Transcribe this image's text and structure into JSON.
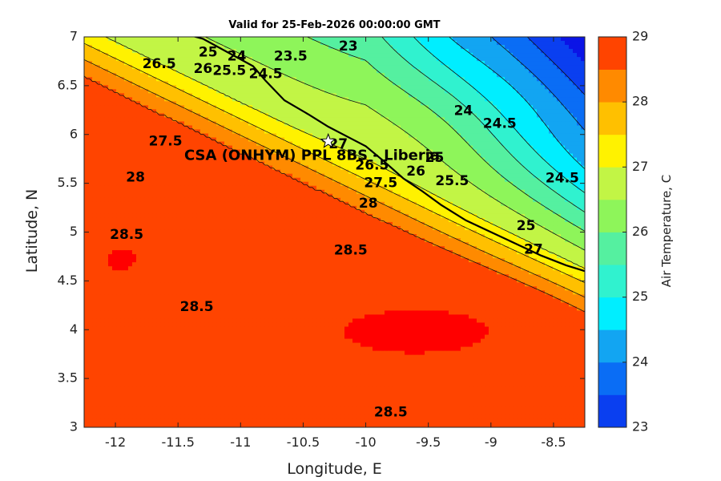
{
  "chart_data": {
    "type": "heatmap",
    "subtype": "filled-contour",
    "title": "Valid for 25-Feb-2026 00:00:00 GMT",
    "xlabel": "Longitude, E",
    "ylabel": "Latitude, N",
    "xlim": [
      -12.25,
      -8.25
    ],
    "ylim": [
      3,
      7
    ],
    "xticks": [
      -12,
      -11.5,
      -11,
      -10.5,
      -10,
      -9.5,
      -9,
      -8.5
    ],
    "yticks": [
      3,
      3.5,
      4,
      4.5,
      5,
      5.5,
      6,
      6.5,
      7
    ],
    "colorbar": {
      "label": "Air Temperature, C",
      "min": 23,
      "max": 29,
      "ticks": [
        23,
        24,
        25,
        26,
        27,
        28,
        29
      ],
      "levels": [
        23,
        23.5,
        24,
        24.5,
        25,
        25.5,
        26,
        26.5,
        27,
        27.5,
        28,
        28.5,
        29
      ],
      "colors": [
        "#0b14e6",
        "#0a3ff0",
        "#0a6df5",
        "#12a5f2",
        "#00eeff",
        "#30f2cf",
        "#55f0a0",
        "#8ef55a",
        "#c2f545",
        "#fff200",
        "#ffc000",
        "#ff8a00",
        "#ff4400",
        "#ff0000"
      ]
    },
    "contour_labels": [
      {
        "text": "23",
        "lon": -10.14,
        "lat": 6.9
      },
      {
        "text": "23.5",
        "lon": -10.6,
        "lat": 6.8
      },
      {
        "text": "24",
        "lon": -11.03,
        "lat": 6.8
      },
      {
        "text": "24.5",
        "lon": -10.8,
        "lat": 6.62
      },
      {
        "text": "25",
        "lon": -11.26,
        "lat": 6.84
      },
      {
        "text": "25.5",
        "lon": -11.09,
        "lat": 6.65
      },
      {
        "text": "26",
        "lon": -11.3,
        "lat": 6.67
      },
      {
        "text": "26.5",
        "lon": -11.65,
        "lat": 6.72
      },
      {
        "text": "27.5",
        "lon": -11.6,
        "lat": 5.93
      },
      {
        "text": "28",
        "lon": -11.84,
        "lat": 5.56
      },
      {
        "text": "24",
        "lon": -9.22,
        "lat": 6.24
      },
      {
        "text": "24.5",
        "lon": -8.93,
        "lat": 6.11
      },
      {
        "text": "24.5",
        "lon": -8.43,
        "lat": 5.55
      },
      {
        "text": "25",
        "lon": -9.45,
        "lat": 5.76
      },
      {
        "text": "25.5",
        "lon": -9.31,
        "lat": 5.52
      },
      {
        "text": "26",
        "lon": -9.6,
        "lat": 5.62
      },
      {
        "text": "26.5",
        "lon": -9.95,
        "lat": 5.68
      },
      {
        "text": "27",
        "lon": -10.22,
        "lat": 5.9
      },
      {
        "text": "27.5",
        "lon": -9.88,
        "lat": 5.5
      },
      {
        "text": "28",
        "lon": -9.98,
        "lat": 5.29
      },
      {
        "text": "25",
        "lon": -8.72,
        "lat": 5.06
      },
      {
        "text": "27",
        "lon": -8.66,
        "lat": 4.82
      },
      {
        "text": "28.5",
        "lon": -11.91,
        "lat": 4.97
      },
      {
        "text": "28.5",
        "lon": -11.35,
        "lat": 4.23
      },
      {
        "text": "28.5",
        "lon": -10.12,
        "lat": 4.81
      },
      {
        "text": "28.5",
        "lon": -9.8,
        "lat": 3.15
      }
    ],
    "station": {
      "name": "CSA (ONHYM) PPL 8BS - Liberia",
      "lon": -10.3,
      "lat": 5.93
    }
  }
}
